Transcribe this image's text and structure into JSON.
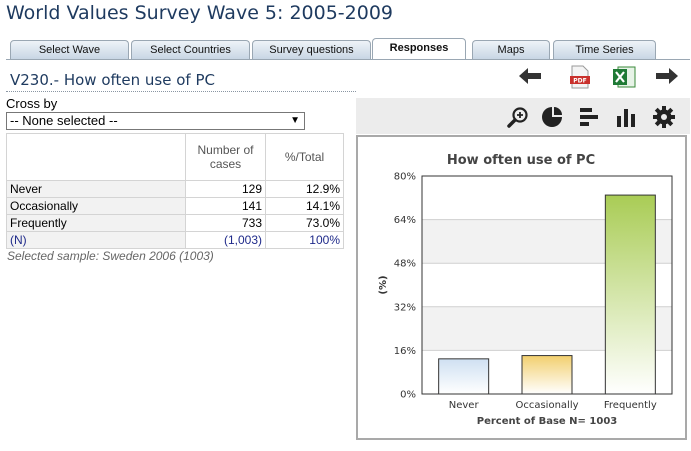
{
  "page_title": "World Values Survey Wave 5: 2005-2009",
  "tabs": [
    {
      "label": "Select Wave",
      "active": false
    },
    {
      "label": "Select Countries",
      "active": false
    },
    {
      "label": "Survey questions",
      "active": false
    },
    {
      "label": "Responses",
      "active": true
    },
    {
      "label": "Maps",
      "active": false
    },
    {
      "label": "Time Series",
      "active": false
    }
  ],
  "question_title": "V230.- How often use of PC",
  "crossby": {
    "label": "Cross by",
    "selected": "-- None selected --"
  },
  "table": {
    "headers": [
      "Number of cases",
      "%/Total"
    ],
    "rows": [
      {
        "label": "Never",
        "cases": "129",
        "pct": "12.9%"
      },
      {
        "label": "Occasionally",
        "cases": "141",
        "pct": "14.1%"
      },
      {
        "label": "Frequently",
        "cases": "733",
        "pct": "73.0%"
      },
      {
        "label": "(N)",
        "cases": "(1,003)",
        "pct": "100%"
      }
    ],
    "note": "Selected sample: Sweden 2006 (1003)"
  },
  "icons": {
    "back": "arrow-left-icon",
    "pdf": "pdf-icon",
    "excel": "excel-icon",
    "forward": "arrow-right-icon",
    "zoom": "zoom-in-icon",
    "pie": "pie-chart-icon",
    "hbar": "horizontal-bar-icon",
    "vbar": "vertical-bar-icon",
    "settings": "gear-icon"
  },
  "chart_data": {
    "type": "bar",
    "title": "How often use of PC",
    "categories": [
      "Never",
      "Occasionally",
      "Frequently"
    ],
    "values": [
      12.9,
      14.1,
      73.0
    ],
    "ylabel": "(%)",
    "xlabel": "Percent of Base N= 1003",
    "ylim": [
      0,
      80
    ],
    "yticks": [
      "0%",
      "16%",
      "32%",
      "48%",
      "64%",
      "80%"
    ],
    "grid": true,
    "colors": [
      "#cfe0f2",
      "#f2cf6e",
      "#a9cc55"
    ]
  }
}
